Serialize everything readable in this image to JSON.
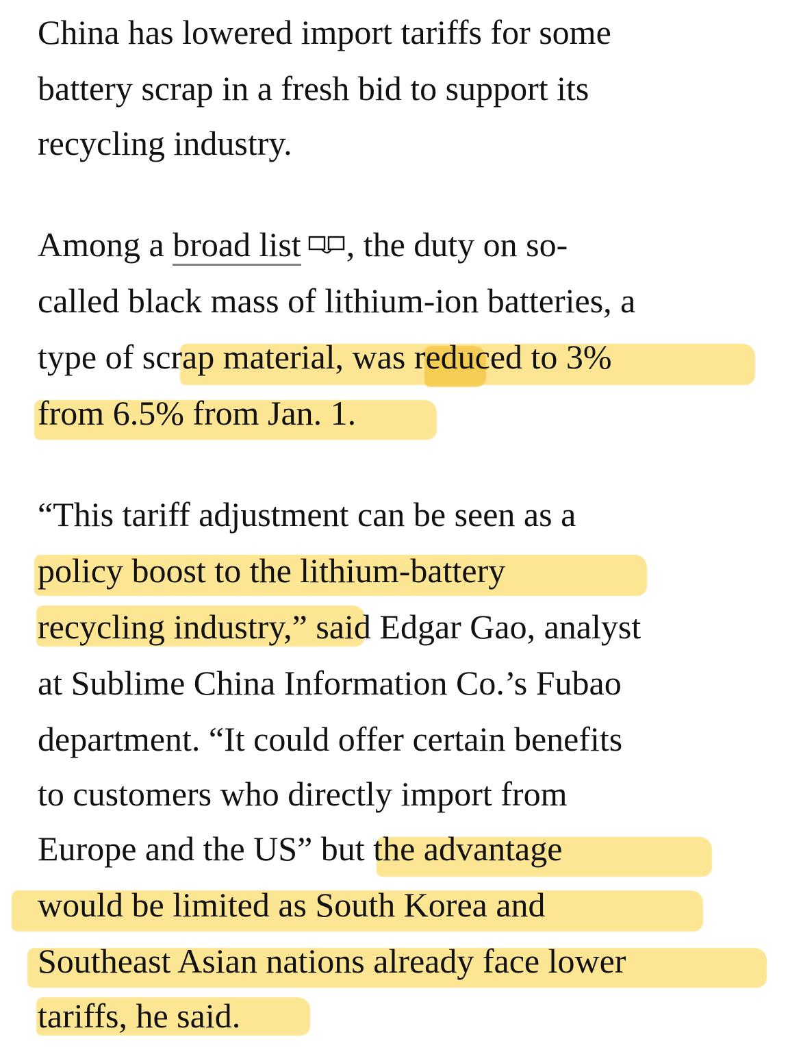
{
  "article": {
    "paragraphs": [
      {
        "lines": [
          "China has lowered import tariffs for some",
          "battery scrap in a fresh bid to support its",
          "recycling industry."
        ]
      },
      {
        "line1_prefix": "Among a ",
        "link_text": "broad list",
        "line1_suffix": ", the duty on so-",
        "line2": "called black mass of lithium-ion batteries, a",
        "line3_plain": "type of s",
        "line3_hl_a": "crap material, ",
        "line3_hl_b": "was",
        "line3_hl_c": " reduced to 3%",
        "line4": "from 6.5% from Jan. 1."
      },
      {
        "line1": "“This tariff adjustment can be seen as a",
        "line2": "policy boost to the lithium-battery",
        "line3_hl": "recycling industry,”",
        "line3_rest": " said Edgar Gao, analyst",
        "line4": "at Sublime China Information Co.’s Fubao",
        "line5": "department. “It could offer certain benefits",
        "line6": "to customers who directly import from",
        "line7_plain": "Europe and the US” ",
        "line7_hl": "but the advantage",
        "line8": "would be limited as South Korea and",
        "line9": "Southeast Asian nations already face lower",
        "line10": "tariffs, he said."
      }
    ],
    "icons": {
      "link_icon": "external-document-icon"
    },
    "colors": {
      "highlight": "#FCE38A",
      "highlight_overlap": "#F6C94A",
      "text": "#111111",
      "link_underline": "#808080"
    }
  }
}
